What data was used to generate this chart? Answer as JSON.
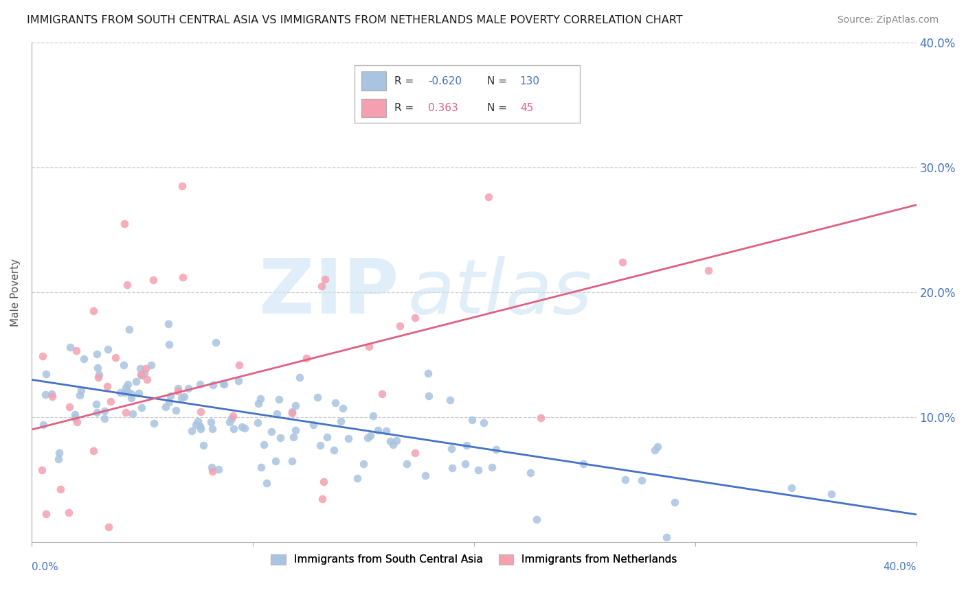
{
  "title": "IMMIGRANTS FROM SOUTH CENTRAL ASIA VS IMMIGRANTS FROM NETHERLANDS MALE POVERTY CORRELATION CHART",
  "source": "Source: ZipAtlas.com",
  "ylabel": "Male Poverty",
  "x_min": 0.0,
  "x_max": 0.4,
  "y_min": 0.0,
  "y_max": 0.4,
  "ytick_labels": [
    "10.0%",
    "20.0%",
    "30.0%",
    "40.0%"
  ],
  "ytick_values": [
    0.1,
    0.2,
    0.3,
    0.4
  ],
  "legend_label_blue": "Immigrants from South Central Asia",
  "legend_label_pink": "Immigrants from Netherlands",
  "legend_R_blue": "-0.620",
  "legend_N_blue": "130",
  "legend_R_pink": "0.363",
  "legend_N_pink": "45",
  "blue_color": "#a8c4e0",
  "pink_color": "#f4a0b0",
  "blue_line_color": "#4472C4",
  "pink_line_color": "#E06080",
  "grid_color": "#cccccc",
  "background_color": "#ffffff",
  "blue_line_x": [
    0.0,
    0.4
  ],
  "blue_line_y": [
    0.13,
    0.022
  ],
  "pink_line_x": [
    0.0,
    0.4
  ],
  "pink_line_y": [
    0.09,
    0.27
  ]
}
